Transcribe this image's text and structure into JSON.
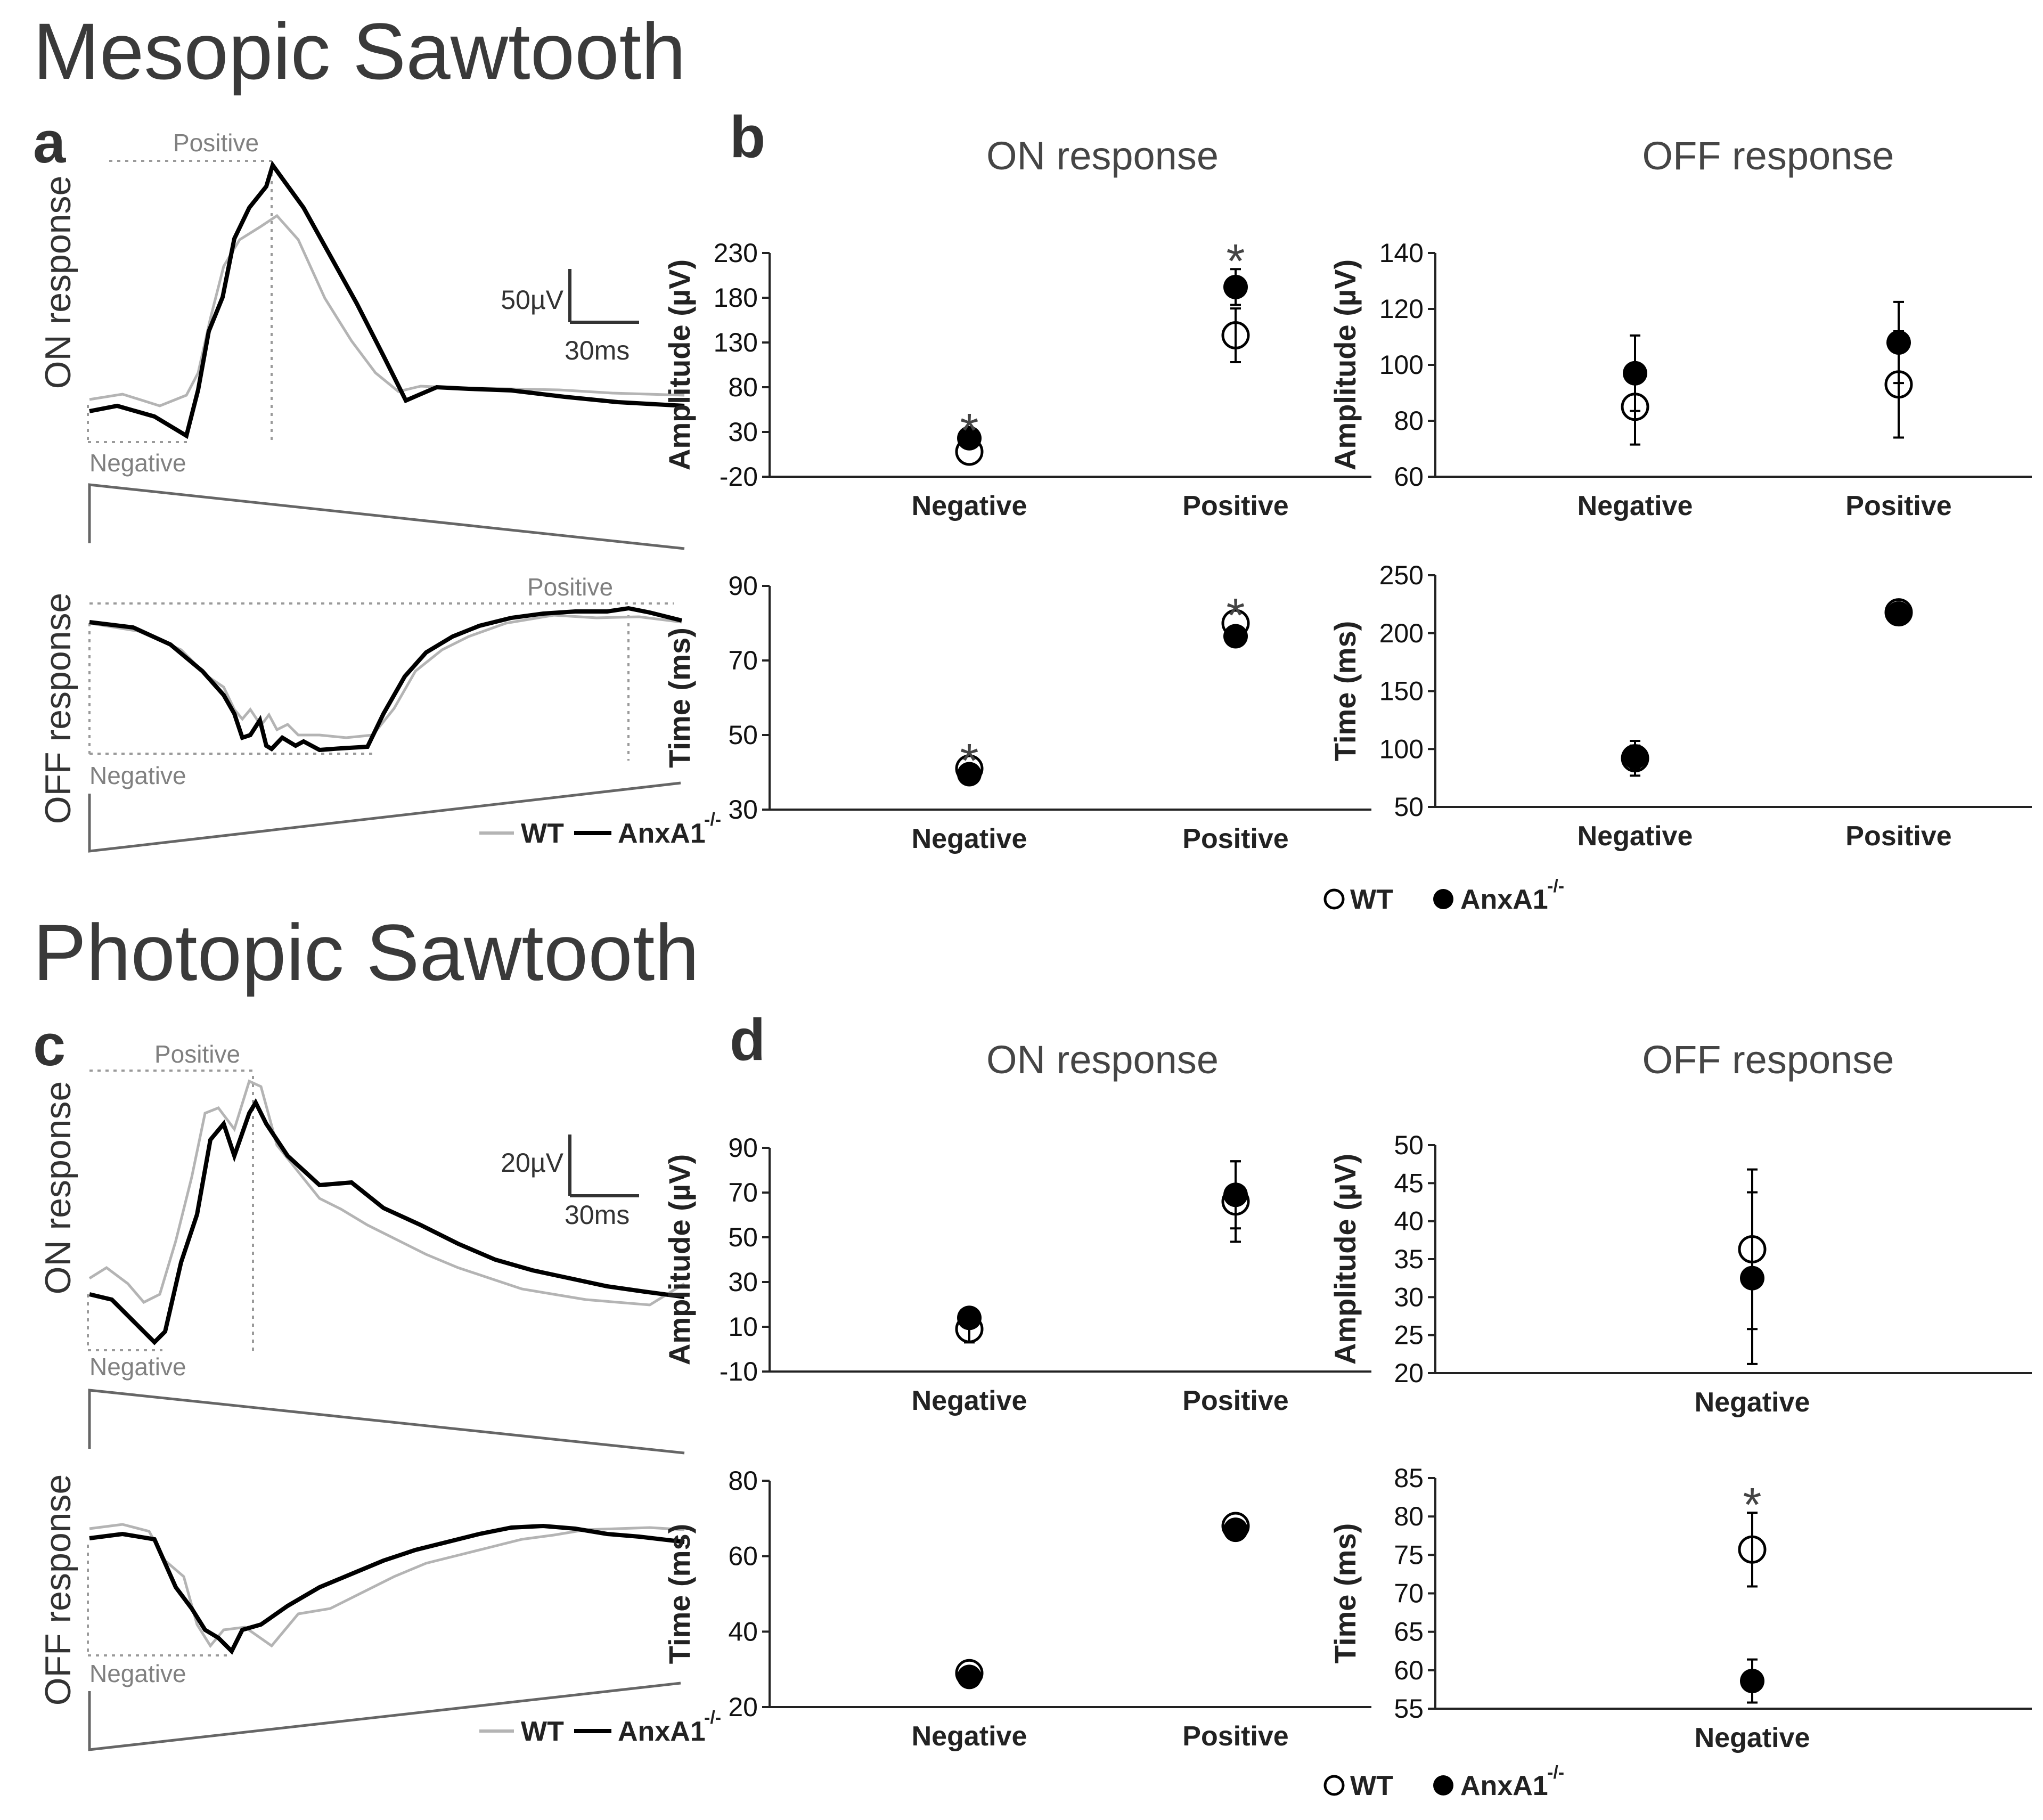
{
  "sections": {
    "mesopic": "Mesopic Sawtooth",
    "photopic": "Photopic Sawtooth"
  },
  "panels": {
    "a": "a",
    "b": "b",
    "c": "c",
    "d": "d"
  },
  "trace_panels": {
    "a": {
      "on_label": "ON response",
      "off_label": "OFF response",
      "on_positive": "Positive",
      "on_negative": "Negative",
      "off_positive": "Positive",
      "off_negative": "Negative",
      "scale_amplitude": "50µV",
      "scale_time": "30ms"
    },
    "c": {
      "on_label": "ON response",
      "off_label": "OFF response",
      "on_positive": "Positive",
      "on_negative": "Negative",
      "off_negative": "Negative",
      "scale_amplitude": "20µV",
      "scale_time": "30ms"
    }
  },
  "legends": {
    "traces": {
      "wt": "WT",
      "ko": "AnxA1",
      "ko_sup": "-/-"
    },
    "markers": {
      "wt": "WT",
      "ko": "AnxA1",
      "ko_sup": "-/-"
    }
  },
  "colors": {
    "wt_trace": "#b4b4b4",
    "ko_trace": "#000000",
    "axis": "#222222",
    "dotted": "#9a9a9a"
  },
  "chart_data": [
    {
      "id": "b_on_amp",
      "type": "scatter",
      "title": "ON response",
      "xlabel": "",
      "ylabel": "Amplitude (µV)",
      "categories": [
        "Negative",
        "Positive"
      ],
      "ylim": [
        -20,
        230
      ],
      "yticks": [
        -20,
        30,
        80,
        130,
        180,
        230
      ],
      "series": [
        {
          "name": "WT",
          "values": [
            8,
            138
          ],
          "errors": [
            null,
            30
          ]
        },
        {
          "name": "AnxA1-/-",
          "values": [
            23,
            192
          ],
          "errors": [
            null,
            20
          ]
        }
      ],
      "significance": [
        "*",
        "*"
      ]
    },
    {
      "id": "b_off_amp",
      "type": "scatter",
      "title": "OFF response",
      "xlabel": "",
      "ylabel": "Amplitude (µV)",
      "categories": [
        "Negative",
        "Positive"
      ],
      "ylim": [
        60,
        140
      ],
      "yticks": [
        60,
        80,
        100,
        120,
        140
      ],
      "series": [
        {
          "name": "WT",
          "values": [
            85,
            93
          ],
          "errors": [
            13.5,
            19
          ]
        },
        {
          "name": "AnxA1-/-",
          "values": [
            97,
            108
          ],
          "errors": [
            13.5,
            14.5
          ]
        }
      ],
      "significance": [
        null,
        null
      ]
    },
    {
      "id": "b_on_time",
      "type": "scatter",
      "title": "",
      "xlabel": "",
      "ylabel": "Time (ms)",
      "categories": [
        "Negative",
        "Positive"
      ],
      "ylim": [
        30,
        90
      ],
      "yticks": [
        30,
        50,
        70,
        90
      ],
      "series": [
        {
          "name": "WT",
          "values": [
            41,
            80
          ],
          "errors": [
            null,
            null
          ]
        },
        {
          "name": "AnxA1-/-",
          "values": [
            39.5,
            76.5
          ],
          "errors": [
            null,
            null
          ]
        }
      ],
      "significance": [
        "*",
        "*"
      ]
    },
    {
      "id": "b_off_time",
      "type": "scatter",
      "title": "",
      "xlabel": "",
      "ylabel": "Time (ms)",
      "categories": [
        "Negative",
        "Positive"
      ],
      "ylim": [
        50,
        250
      ],
      "yticks": [
        50,
        100,
        150,
        200,
        250
      ],
      "series": [
        {
          "name": "WT",
          "values": [
            92,
            218
          ],
          "errors": [
            15,
            null
          ]
        },
        {
          "name": "AnxA1-/-",
          "values": [
            93,
            217
          ],
          "errors": [
            10,
            null
          ]
        }
      ],
      "significance": [
        null,
        null
      ]
    },
    {
      "id": "d_on_amp",
      "type": "scatter",
      "title": "ON response",
      "xlabel": "",
      "ylabel": "Amplitude (µV)",
      "categories": [
        "Negative",
        "Positive"
      ],
      "ylim": [
        -10,
        90
      ],
      "yticks": [
        -10,
        10,
        30,
        50,
        70,
        90
      ],
      "series": [
        {
          "name": "WT",
          "values": [
            9,
            66
          ],
          "errors": [
            6,
            18
          ]
        },
        {
          "name": "AnxA1-/-",
          "values": [
            14,
            69
          ],
          "errors": [
            4,
            15
          ]
        }
      ],
      "significance": [
        null,
        null
      ]
    },
    {
      "id": "d_off_amp",
      "type": "scatter",
      "title": "OFF response",
      "xlabel": "",
      "ylabel": "Amplitude (µV)",
      "categories": [
        "Negative"
      ],
      "ylim": [
        20,
        50
      ],
      "yticks": [
        20,
        25,
        30,
        35,
        40,
        45,
        50
      ],
      "series": [
        {
          "name": "WT",
          "values": [
            36.3
          ],
          "errors": [
            10.5
          ]
        },
        {
          "name": "AnxA1-/-",
          "values": [
            32.5
          ],
          "errors": [
            11.3
          ]
        }
      ],
      "significance": [
        null
      ]
    },
    {
      "id": "d_on_time",
      "type": "scatter",
      "title": "",
      "xlabel": "",
      "ylabel": "Time (ms)",
      "categories": [
        "Negative",
        "Positive"
      ],
      "ylim": [
        20,
        80
      ],
      "yticks": [
        20,
        40,
        60,
        80
      ],
      "series": [
        {
          "name": "WT",
          "values": [
            29,
            68
          ],
          "errors": [
            null,
            null
          ]
        },
        {
          "name": "AnxA1-/-",
          "values": [
            28,
            67
          ],
          "errors": [
            null,
            null
          ]
        }
      ],
      "significance": [
        null,
        null
      ]
    },
    {
      "id": "d_off_time",
      "type": "scatter",
      "title": "",
      "xlabel": "",
      "ylabel": "Time (ms)",
      "categories": [
        "Negative"
      ],
      "ylim": [
        55,
        85
      ],
      "yticks": [
        55,
        60,
        65,
        70,
        75,
        80,
        85
      ],
      "series": [
        {
          "name": "WT",
          "values": [
            75.7
          ],
          "errors": [
            4.8
          ]
        },
        {
          "name": "AnxA1-/-",
          "values": [
            58.6
          ],
          "errors": [
            2.8
          ]
        }
      ],
      "significance": [
        "*"
      ]
    }
  ]
}
